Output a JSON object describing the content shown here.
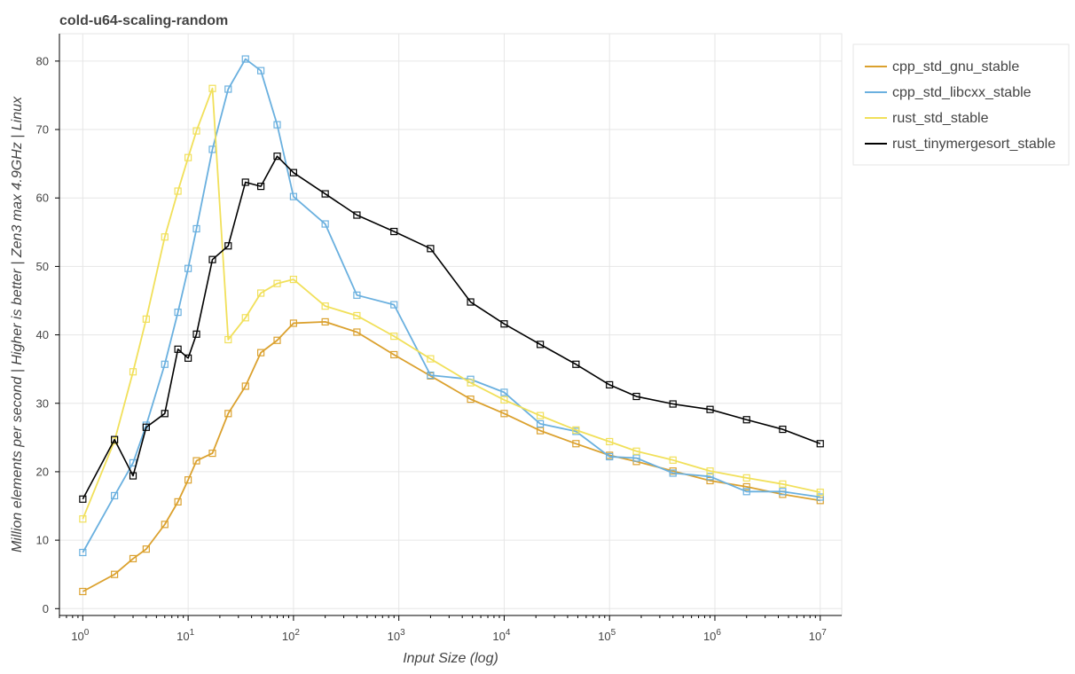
{
  "chart_data": {
    "type": "line",
    "title": "cold-u64-scaling-random",
    "xlabel": "Input Size (log)",
    "ylabel": "Million elements per second | Higher is better | Zen3 max 4.9GHz | Linux",
    "x_scale": "log10",
    "xlim": [
      0.6,
      16000000
    ],
    "ylim": [
      -1,
      84
    ],
    "x_ticks": [
      {
        "base": "10",
        "exp": "0"
      },
      {
        "base": "10",
        "exp": "1"
      },
      {
        "base": "10",
        "exp": "2"
      },
      {
        "base": "10",
        "exp": "3"
      },
      {
        "base": "10",
        "exp": "4"
      },
      {
        "base": "10",
        "exp": "5"
      },
      {
        "base": "10",
        "exp": "6"
      },
      {
        "base": "10",
        "exp": "7"
      }
    ],
    "y_ticks": [
      "0",
      "10",
      "20",
      "30",
      "40",
      "50",
      "60",
      "70",
      "80"
    ],
    "grid": true,
    "legend_position": "right",
    "marker": "square",
    "x": [
      1,
      2,
      3,
      4,
      6,
      8,
      10,
      12,
      17,
      24,
      35,
      49,
      70,
      100,
      200,
      400,
      900,
      2000,
      4800,
      10000,
      22000,
      48000,
      100000,
      180000,
      400000,
      900000,
      2000000,
      4400000,
      10000000
    ],
    "series": [
      {
        "name": "cpp_std_gnu_stable",
        "color": "#dba12e",
        "values": [
          2.5,
          5.0,
          7.3,
          8.7,
          12.3,
          15.6,
          18.8,
          21.6,
          22.7,
          28.5,
          32.5,
          37.4,
          39.2,
          41.7,
          41.9,
          40.4,
          37.1,
          34.0,
          30.6,
          28.5,
          26.0,
          24.1,
          22.4,
          21.5,
          20.1,
          18.7,
          17.8,
          16.7,
          15.8
        ]
      },
      {
        "name": "cpp_std_libcxx_stable",
        "color": "#6ab0df",
        "values": [
          8.2,
          16.5,
          21.3,
          26.8,
          35.7,
          43.3,
          49.7,
          55.5,
          67.1,
          75.9,
          80.3,
          78.6,
          70.7,
          60.2,
          56.2,
          45.8,
          44.4,
          34.1,
          33.5,
          31.6,
          27.0,
          25.9,
          22.2,
          22.0,
          19.8,
          19.3,
          17.1,
          17.1,
          16.3
        ]
      },
      {
        "name": "rust_std_stable",
        "color": "#f1e05a",
        "values": [
          13.1,
          24.5,
          34.6,
          42.3,
          54.3,
          61.0,
          65.9,
          69.8,
          76.0,
          39.3,
          42.5,
          46.1,
          47.5,
          48.1,
          44.2,
          42.8,
          39.8,
          36.5,
          33.0,
          30.5,
          28.2,
          26.1,
          24.4,
          23.0,
          21.7,
          20.1,
          19.1,
          18.2,
          17.0
        ]
      },
      {
        "name": "rust_tinymergesort_stable",
        "color": "#000000",
        "values": [
          16.0,
          24.7,
          19.4,
          26.5,
          28.5,
          37.9,
          36.6,
          40.1,
          51.0,
          53.0,
          62.3,
          61.7,
          66.1,
          63.7,
          60.6,
          57.5,
          55.1,
          52.6,
          44.8,
          41.6,
          38.6,
          35.7,
          32.7,
          31.0,
          29.9,
          29.1,
          27.6,
          26.2,
          24.1
        ]
      }
    ]
  }
}
